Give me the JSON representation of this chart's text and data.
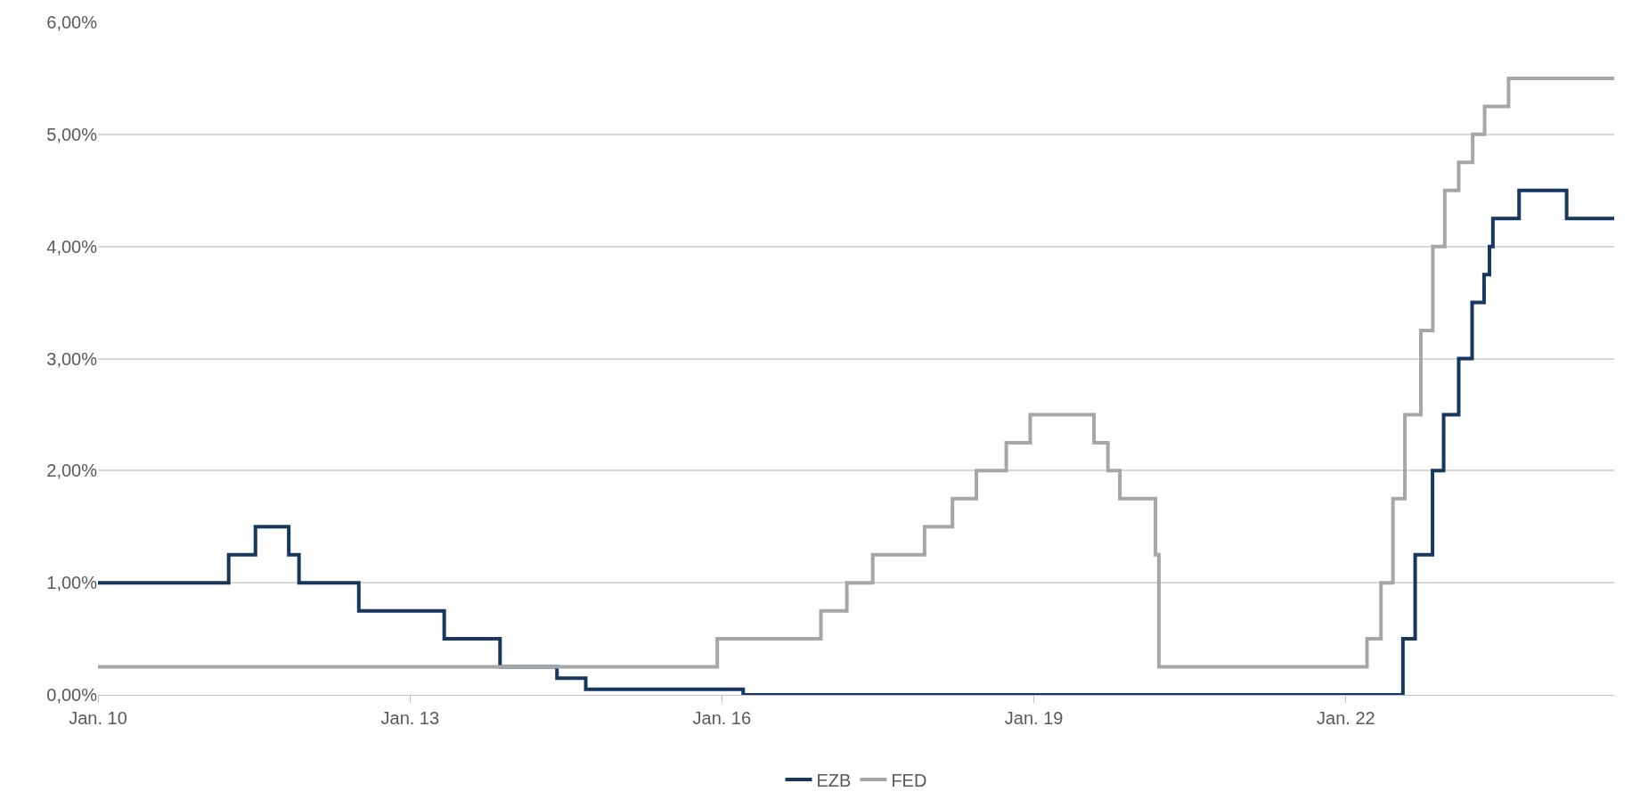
{
  "chart_data": {
    "type": "step",
    "series": [
      {
        "name": "EZB",
        "color": "#17375e",
        "x": [
          "2010-01-01",
          "2011-04-05",
          "2011-07-08",
          "2011-11-02",
          "2011-12-08",
          "2012-07-05",
          "2013-05-01",
          "2013-11-13",
          "2014-06-01",
          "2014-09-10",
          "2016-03-16",
          "2022-07-20",
          "2022-09-01",
          "2022-11-01",
          "2022-12-10",
          "2023-02-01",
          "2023-03-20",
          "2023-05-01",
          "2023-05-20",
          "2023-06-01",
          "2023-09-01",
          "2024-02-15",
          "2024-07-31"
        ],
        "values": [
          1.0,
          1.25,
          1.5,
          1.25,
          1.0,
          0.75,
          0.5,
          0.25,
          0.15,
          0.05,
          0.0,
          0.5,
          1.25,
          2.0,
          2.5,
          3.0,
          3.5,
          3.75,
          4.0,
          4.25,
          4.5,
          4.25,
          4.25
        ]
      },
      {
        "name": "FED",
        "color": "#a6a6a6",
        "x": [
          "2010-01-01",
          "2015-12-16",
          "2016-12-14",
          "2017-03-15",
          "2017-06-14",
          "2017-12-13",
          "2018-03-21",
          "2018-06-13",
          "2018-09-26",
          "2018-12-19",
          "2019-07-31",
          "2019-09-18",
          "2019-10-30",
          "2020-03-03",
          "2020-03-15",
          "2022-03-16",
          "2022-05-04",
          "2022-06-15",
          "2022-07-27",
          "2022-09-21",
          "2022-11-02",
          "2022-12-14",
          "2023-02-01",
          "2023-03-22",
          "2023-05-03",
          "2023-07-26",
          "2024-07-31"
        ],
        "values": [
          0.25,
          0.5,
          0.75,
          1.0,
          1.25,
          1.5,
          1.75,
          2.0,
          2.25,
          2.5,
          2.25,
          2.0,
          1.75,
          1.25,
          0.25,
          0.5,
          1.0,
          1.75,
          2.5,
          3.25,
          4.0,
          4.5,
          4.75,
          5.0,
          5.25,
          5.5,
          5.5
        ]
      }
    ],
    "xlim": [
      "2010-01-01",
      "2024-07-31"
    ],
    "xticks": [
      {
        "value": "2010-01-01",
        "label": "Jan. 10"
      },
      {
        "value": "2013-01-01",
        "label": "Jan. 13"
      },
      {
        "value": "2016-01-01",
        "label": "Jan. 16"
      },
      {
        "value": "2019-01-01",
        "label": "Jan. 19"
      },
      {
        "value": "2022-01-01",
        "label": "Jan. 22"
      }
    ],
    "ylim": [
      0,
      6
    ],
    "yticks": [
      {
        "value": 0,
        "label": "0,00%"
      },
      {
        "value": 1,
        "label": "1,00%"
      },
      {
        "value": 2,
        "label": "2,00%"
      },
      {
        "value": 3,
        "label": "3,00%"
      },
      {
        "value": 4,
        "label": "4,00%"
      },
      {
        "value": 5,
        "label": "5,00%"
      },
      {
        "value": 6,
        "label": "6,00%"
      }
    ],
    "grid": "y",
    "legend": "bottom",
    "marker": "none",
    "line_style": "solid"
  }
}
